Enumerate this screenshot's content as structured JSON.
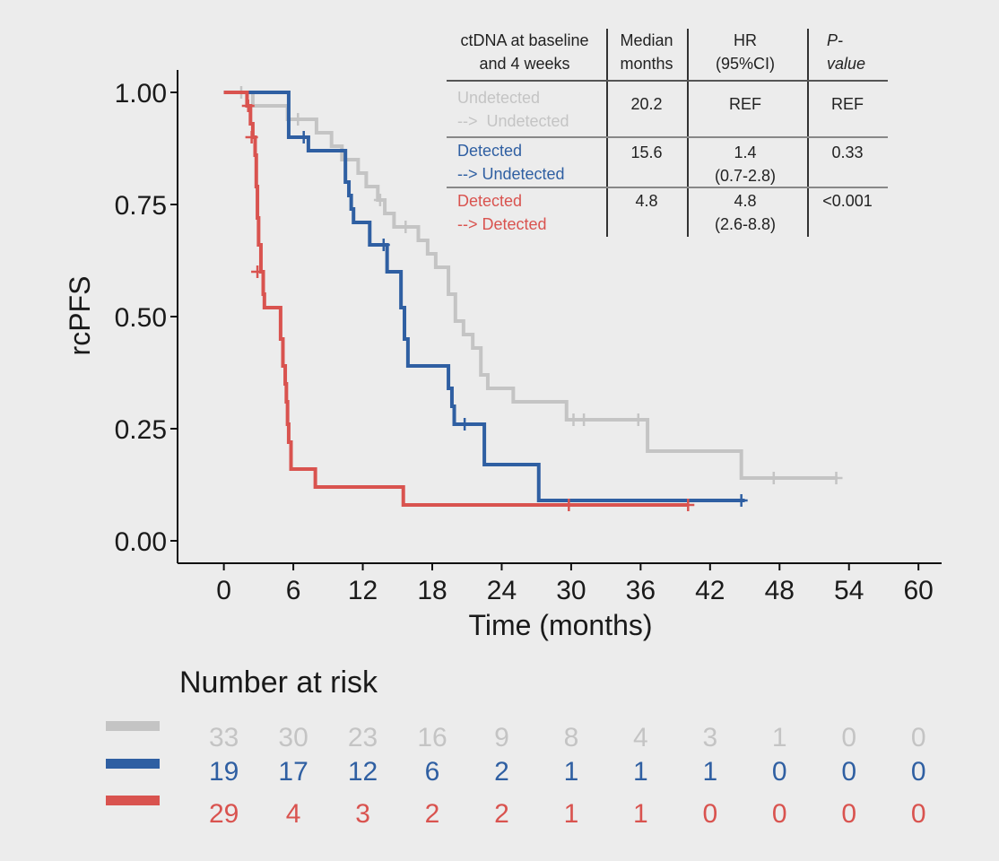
{
  "chart_data": {
    "type": "line",
    "xlabel": "Time (months)",
    "ylabel": "rcPFS",
    "xlim": [
      -4,
      62
    ],
    "ylim": [
      -0.05,
      1.05
    ],
    "x_ticks": [
      0,
      6,
      12,
      18,
      24,
      30,
      36,
      42,
      48,
      54,
      60
    ],
    "y_ticks": [
      0.0,
      0.25,
      0.5,
      0.75,
      1.0
    ],
    "y_tick_labels": [
      "0.00",
      "0.25",
      "0.50",
      "0.75",
      "1.00"
    ],
    "grid": false,
    "series": [
      {
        "name": "Undetected --> Undetected",
        "color": "#c4c4c4",
        "steps": [
          [
            0,
            1.0
          ],
          [
            1.8,
            1.0
          ],
          [
            2.5,
            0.97
          ],
          [
            5.5,
            0.94
          ],
          [
            8,
            0.91
          ],
          [
            9.3,
            0.88
          ],
          [
            10.2,
            0.85
          ],
          [
            11.6,
            0.82
          ],
          [
            12.3,
            0.79
          ],
          [
            13.3,
            0.76
          ],
          [
            13.9,
            0.73
          ],
          [
            14.7,
            0.7
          ],
          [
            16.8,
            0.67
          ],
          [
            17.6,
            0.64
          ],
          [
            18.3,
            0.61
          ],
          [
            19.4,
            0.55
          ],
          [
            20,
            0.49
          ],
          [
            20.7,
            0.46
          ],
          [
            21.5,
            0.43
          ],
          [
            22.2,
            0.37
          ],
          [
            22.8,
            0.34
          ],
          [
            25,
            0.31
          ],
          [
            29.6,
            0.27
          ],
          [
            36.6,
            0.2
          ],
          [
            44.7,
            0.14
          ],
          [
            53,
            0.14
          ]
        ],
        "censors": [
          [
            1.5,
            1.0
          ],
          [
            6.4,
            0.94
          ],
          [
            13.5,
            0.76
          ],
          [
            15.7,
            0.7
          ],
          [
            30.2,
            0.27
          ],
          [
            31.1,
            0.27
          ],
          [
            35.8,
            0.27
          ],
          [
            47.5,
            0.14
          ],
          [
            52.9,
            0.14
          ]
        ]
      },
      {
        "name": "Detected --> Undetected",
        "color": "#2f5fa2",
        "steps": [
          [
            0,
            1.0
          ],
          [
            5.6,
            0.9
          ],
          [
            7.3,
            0.87
          ],
          [
            10.5,
            0.8
          ],
          [
            10.8,
            0.77
          ],
          [
            11,
            0.74
          ],
          [
            11.2,
            0.71
          ],
          [
            12.6,
            0.66
          ],
          [
            14.1,
            0.6
          ],
          [
            15.3,
            0.52
          ],
          [
            15.6,
            0.45
          ],
          [
            15.9,
            0.39
          ],
          [
            19.4,
            0.34
          ],
          [
            19.7,
            0.3
          ],
          [
            19.9,
            0.26
          ],
          [
            22.5,
            0.17
          ],
          [
            27.2,
            0.09
          ],
          [
            45,
            0.09
          ]
        ],
        "censors": [
          [
            6.9,
            0.9
          ],
          [
            13.8,
            0.66
          ],
          [
            20.8,
            0.26
          ],
          [
            44.7,
            0.09
          ]
        ]
      },
      {
        "name": "Detected --> Detected",
        "color": "#d9534f",
        "steps": [
          [
            0,
            1.0
          ],
          [
            2,
            0.97
          ],
          [
            2.3,
            0.93
          ],
          [
            2.5,
            0.9
          ],
          [
            2.7,
            0.86
          ],
          [
            2.8,
            0.79
          ],
          [
            2.9,
            0.72
          ],
          [
            3.0,
            0.66
          ],
          [
            3.2,
            0.6
          ],
          [
            3.4,
            0.55
          ],
          [
            3.5,
            0.52
          ],
          [
            4.9,
            0.45
          ],
          [
            5.1,
            0.39
          ],
          [
            5.3,
            0.35
          ],
          [
            5.4,
            0.31
          ],
          [
            5.5,
            0.26
          ],
          [
            5.6,
            0.22
          ],
          [
            5.8,
            0.16
          ],
          [
            7.9,
            0.12
          ],
          [
            15.5,
            0.08
          ],
          [
            40,
            0.08
          ]
        ],
        "censors": [
          [
            2.1,
            0.97
          ],
          [
            2.4,
            0.9
          ],
          [
            2.9,
            0.6
          ],
          [
            29.8,
            0.08
          ],
          [
            40.1,
            0.08
          ]
        ]
      }
    ]
  },
  "summary_table": {
    "headers": {
      "group": [
        "ctDNA at baseline",
        "and 4 weeks"
      ],
      "median": [
        "Median",
        "months"
      ],
      "hr": [
        "HR",
        "(95%CI)"
      ],
      "p": [
        "P-",
        "value"
      ]
    },
    "rows": [
      {
        "group": [
          "Undetected",
          "-->  Undetected"
        ],
        "color": "#c4c4c4",
        "median": "20.2",
        "hr": [
          "REF",
          ""
        ],
        "p": "REF"
      },
      {
        "group": [
          "Detected",
          "--> Undetected"
        ],
        "color": "#2f5fa2",
        "median": "15.6",
        "hr": [
          "1.4",
          "(0.7-2.8)"
        ],
        "p": "0.33"
      },
      {
        "group": [
          "Detected",
          "--> Detected"
        ],
        "color": "#d9534f",
        "median": "4.8",
        "hr": [
          "4.8",
          "(2.6-8.8)"
        ],
        "p": "<0.001"
      }
    ]
  },
  "risk_table": {
    "title": "Number at risk",
    "rows": [
      {
        "color": "#c4c4c4",
        "values": [
          "33",
          "30",
          "23",
          "16",
          "9",
          "8",
          "4",
          "3",
          "1",
          "0",
          "0"
        ]
      },
      {
        "color": "#2f5fa2",
        "values": [
          "19",
          "17",
          "12",
          "6",
          "2",
          "1",
          "1",
          "1",
          "0",
          "0",
          "0"
        ]
      },
      {
        "color": "#d9534f",
        "values": [
          "29",
          "4",
          "3",
          "2",
          "2",
          "1",
          "1",
          "0",
          "0",
          "0",
          "0"
        ]
      }
    ]
  }
}
